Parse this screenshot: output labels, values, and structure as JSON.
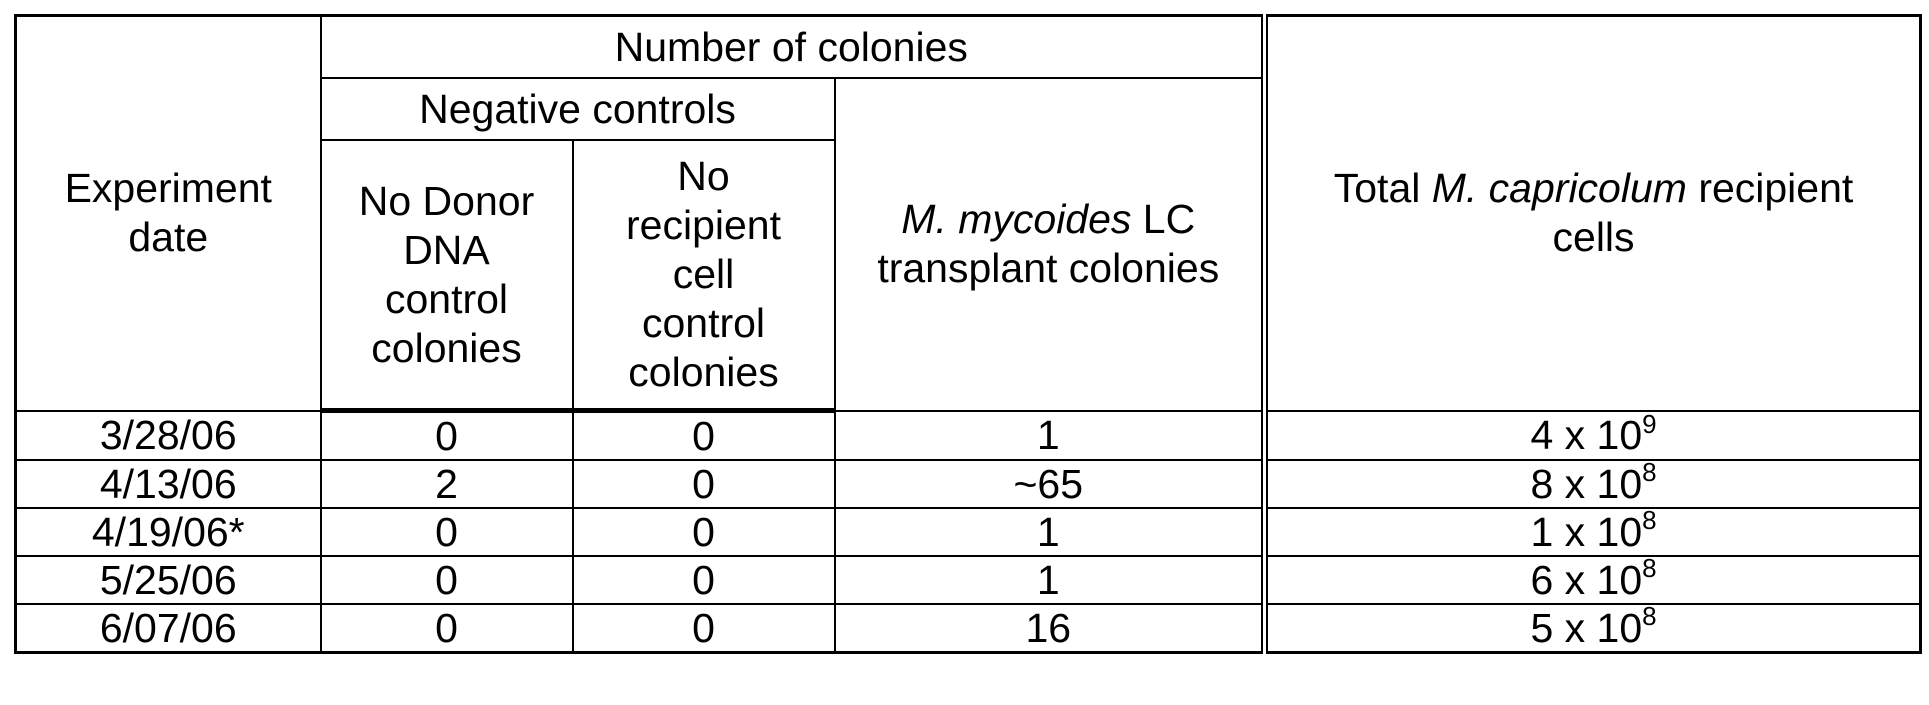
{
  "header": {
    "experiment_date_line1": "Experiment",
    "experiment_date_line2": "date",
    "number_of_colonies": "Number of colonies",
    "negative_controls": "Negative controls",
    "no_donor": [
      "No Donor",
      "DNA",
      "control",
      "colonies"
    ],
    "no_recipient": [
      "No",
      "recipient",
      "cell",
      "control",
      "colonies"
    ],
    "transplant_italic": "M. mycoides",
    "transplant_rest_line1": " LC",
    "transplant_line2": "transplant colonies",
    "total_prefix": "Total ",
    "total_italic": "M. capricolum",
    "total_suffix": " recipient",
    "total_line2": "cells"
  },
  "rows": [
    {
      "date": "3/28/06",
      "no_donor": "0",
      "no_recipient": "0",
      "transplant": "1",
      "total_mantissa": "4 x 10",
      "total_exp": "9"
    },
    {
      "date": "4/13/06",
      "no_donor": "2",
      "no_recipient": "0",
      "transplant": "~65",
      "total_mantissa": "8 x 10",
      "total_exp": "8"
    },
    {
      "date": "4/19/06*",
      "no_donor": "0",
      "no_recipient": "0",
      "transplant": "1",
      "total_mantissa": "1 x 10",
      "total_exp": "8"
    },
    {
      "date": "5/25/06",
      "no_donor": "0",
      "no_recipient": "0",
      "transplant": "1",
      "total_mantissa": "6 x 10",
      "total_exp": "8"
    },
    {
      "date": "6/07/06",
      "no_donor": "0",
      "no_recipient": "0",
      "transplant": "16",
      "total_mantissa": "5 x 10",
      "total_exp": "8"
    }
  ]
}
